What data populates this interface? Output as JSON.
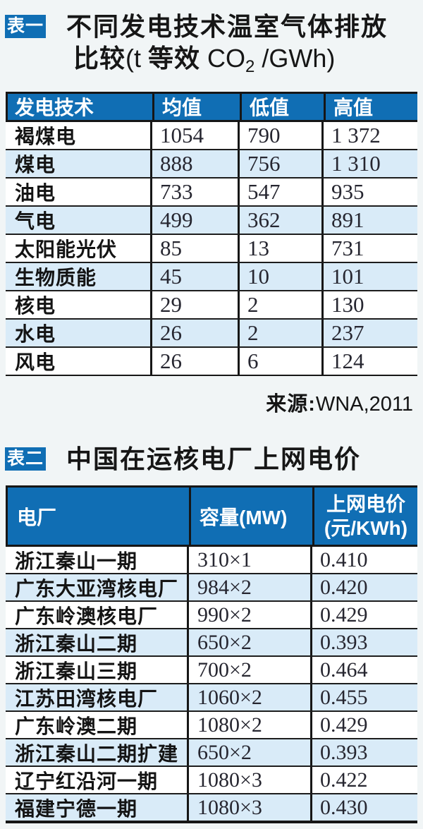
{
  "page": {
    "bg": "#f1f5f6",
    "accent_blue": "#106eb4",
    "row_alt_blue": "#d9ebf8",
    "rule_black": "#161616"
  },
  "table1": {
    "badge": "表一",
    "title_line1": "不同发电技术温室气体排放",
    "title2_cjk1": "比较",
    "title2_latin1": "(t ",
    "title2_cjk2": "等效",
    "title2_latin2": " CO",
    "title2_sub": "2",
    "title2_latin3": " /GWh)",
    "headers": [
      "发电技术",
      "均值",
      "低值",
      "高值"
    ],
    "rows": [
      [
        "褐煤电",
        "1054",
        "790",
        "1 372"
      ],
      [
        "煤电",
        "888",
        "756",
        "1 310"
      ],
      [
        "油电",
        "733",
        "547",
        "935"
      ],
      [
        "气电",
        "499",
        "362",
        "891"
      ],
      [
        "太阳能光伏",
        "85",
        "13",
        "731"
      ],
      [
        "生物质能",
        "45",
        "10",
        "101"
      ],
      [
        "核电",
        "29",
        "2",
        "130"
      ],
      [
        "水电",
        "26",
        "2",
        "237"
      ],
      [
        "风电",
        "26",
        "6",
        "124"
      ]
    ],
    "source_label": "来源:",
    "source_value": "WNA,2011"
  },
  "table2": {
    "badge": "表二",
    "title": "中国在运核电厂上网电价",
    "headers": [
      "电厂",
      "容量(MW)"
    ],
    "header3_line1": "上网电价",
    "header3_line2": "(元/KWh)",
    "rows": [
      [
        "浙江秦山一期",
        "310×1",
        "0.410"
      ],
      [
        "广东大亚湾核电厂",
        "984×2",
        "0.420"
      ],
      [
        "广东岭澳核电厂",
        "990×2",
        "0.429"
      ],
      [
        "浙江秦山二期",
        "650×2",
        "0.393"
      ],
      [
        "浙江秦山三期",
        "700×2",
        "0.464"
      ],
      [
        "江苏田湾核电厂",
        "1060×2",
        "0.455"
      ],
      [
        "广东岭澳二期",
        "1080×2",
        "0.429"
      ],
      [
        "浙江秦山二期扩建",
        "650×2",
        "0.393"
      ],
      [
        "辽宁红沿河一期",
        "1080×3",
        "0.422"
      ],
      [
        "福建宁德一期",
        "1080×3",
        "0.430"
      ]
    ]
  }
}
